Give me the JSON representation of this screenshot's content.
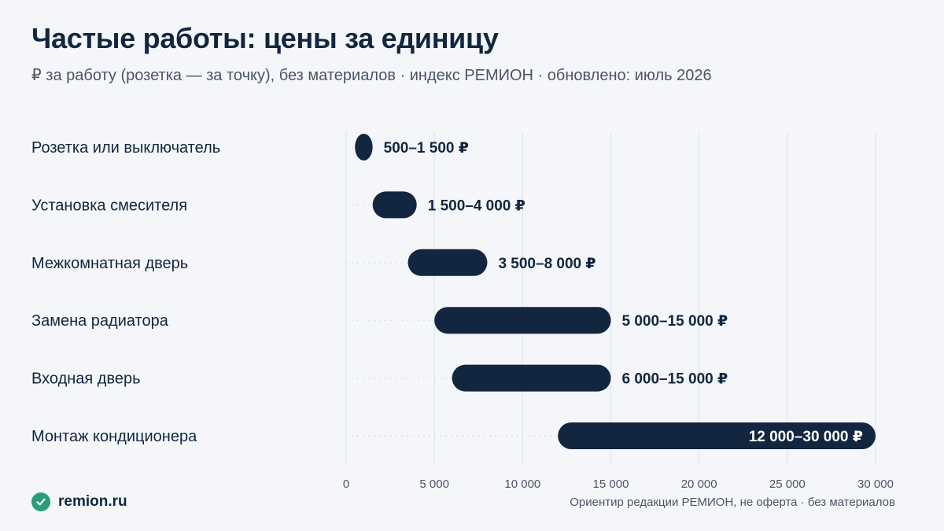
{
  "header": {
    "title": "Частые работы: цены за единицу",
    "subtitle": "₽ за работу (розетка — за точку), без материалов · индекс РЕМИОН · обновлено: июль 2026"
  },
  "footer": {
    "brand": "remion.ru",
    "brand_icon": "check-circle-icon",
    "note": "Ориентир редакции РЕМИОН, не оферта · без материалов"
  },
  "colors": {
    "bar": "#12263f",
    "background": "#f4f6f9",
    "grid": "#dde2e8",
    "accent": "#2a9d7a"
  },
  "chart_data": {
    "type": "bar",
    "orientation": "horizontal",
    "ranged": true,
    "categories": [
      "Розетка или выключатель",
      "Установка смесителя",
      "Межкомнатная дверь",
      "Замена радиатора",
      "Входная дверь",
      "Монтаж кондиционера"
    ],
    "ranges": [
      [
        500,
        1500
      ],
      [
        1500,
        4000
      ],
      [
        3500,
        8000
      ],
      [
        5000,
        15000
      ],
      [
        6000,
        15000
      ],
      [
        12000,
        30000
      ]
    ],
    "value_labels": [
      "500–1 500 ₽",
      "1 500–4 000 ₽",
      "3 500–8 000 ₽",
      "5 000–15 000 ₽",
      "6 000–15 000 ₽",
      "12 000–30 000 ₽"
    ],
    "xlim": [
      0,
      30000
    ],
    "xticks": [
      0,
      5000,
      10000,
      15000,
      20000,
      25000,
      30000
    ],
    "xtick_labels": [
      "0",
      "5 000",
      "10 000",
      "15 000",
      "20 000",
      "25 000",
      "30 000"
    ],
    "grid": "vertical",
    "legend": "none"
  }
}
